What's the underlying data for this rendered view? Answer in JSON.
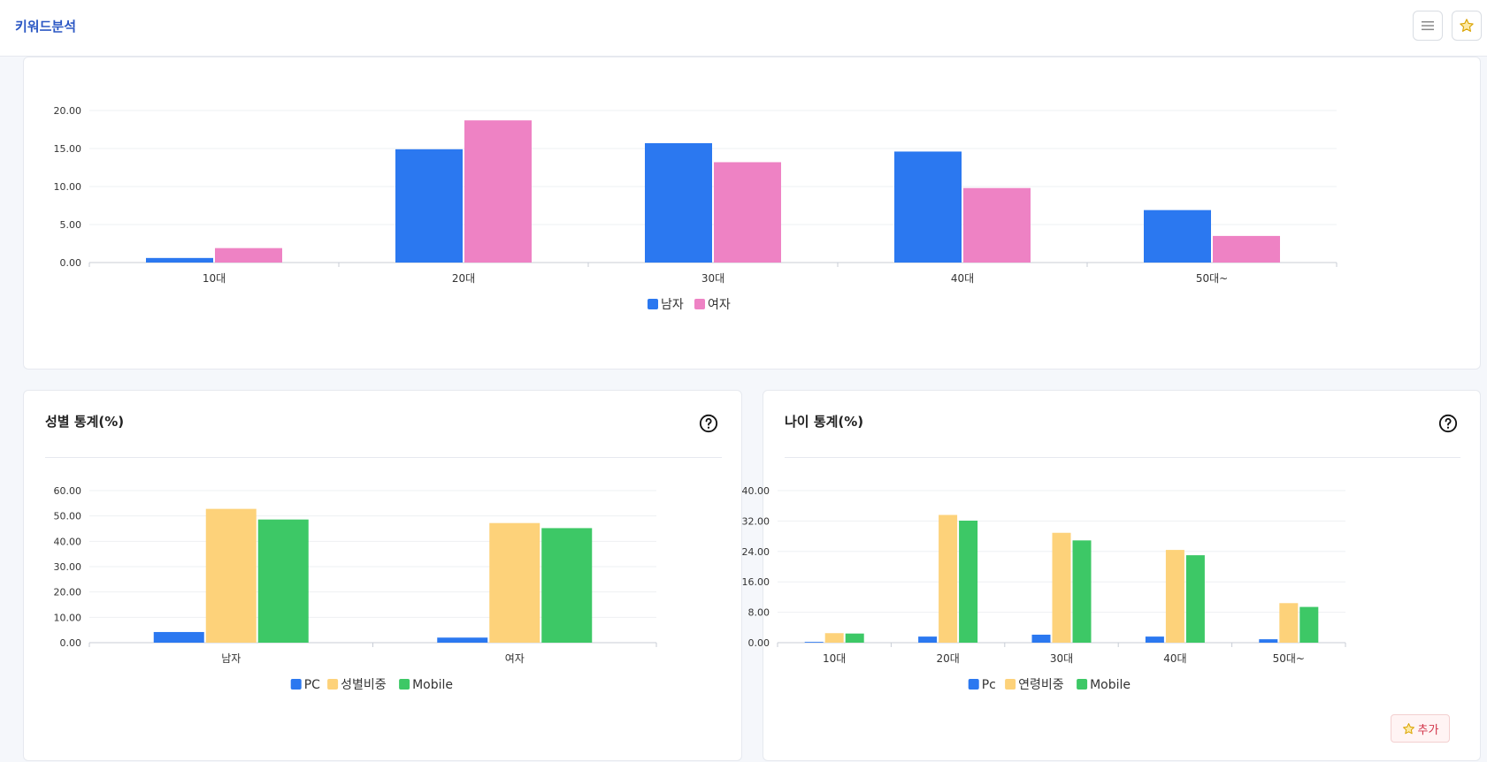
{
  "header": {
    "title": "키워드분석",
    "menu_icon": "hamburger-icon",
    "favorite_icon": "star-icon"
  },
  "colors": {
    "blue": "#2b78f0",
    "pink": "#ee82c4",
    "yellow": "#fdd27a",
    "green": "#3dc866"
  },
  "add_button": {
    "label": "추가",
    "icon": "star-icon"
  },
  "chart_data": [
    {
      "type": "bar",
      "title": "",
      "categories": [
        "10대",
        "20대",
        "30대",
        "40대",
        "50대~"
      ],
      "series": [
        {
          "name": "남자",
          "values": [
            0.6,
            14.9,
            15.7,
            14.6,
            6.9
          ]
        },
        {
          "name": "여자",
          "values": [
            1.9,
            18.7,
            13.2,
            9.8,
            3.5
          ]
        }
      ],
      "yticks": [
        "0.00",
        "5.00",
        "10.00",
        "15.00",
        "20.00"
      ],
      "ylim": [
        0,
        20
      ],
      "legend": "bottom"
    },
    {
      "type": "bar",
      "title": "성별 통계(%)",
      "categories": [
        "남자",
        "여자"
      ],
      "series": [
        {
          "name": "PC",
          "values": [
            4.2,
            2.0
          ]
        },
        {
          "name": "성별비중",
          "values": [
            52.8,
            47.2
          ]
        },
        {
          "name": "Mobile",
          "values": [
            48.6,
            45.2
          ]
        }
      ],
      "yticks": [
        "0.00",
        "10.00",
        "20.00",
        "30.00",
        "40.00",
        "50.00",
        "60.00"
      ],
      "ylim": [
        0,
        60
      ],
      "legend": "bottom"
    },
    {
      "type": "bar",
      "title": "나이 통계(%)",
      "categories": [
        "10대",
        "20대",
        "30대",
        "40대",
        "50대~"
      ],
      "series": [
        {
          "name": "Pc",
          "values": [
            0.2,
            1.6,
            2.1,
            1.6,
            0.9
          ]
        },
        {
          "name": "연령비중",
          "values": [
            2.5,
            33.6,
            28.9,
            24.4,
            10.4
          ]
        },
        {
          "name": "Mobile",
          "values": [
            2.4,
            32.1,
            26.9,
            23.0,
            9.4
          ]
        }
      ],
      "yticks": [
        "0.00",
        "8.00",
        "16.00",
        "24.00",
        "32.00",
        "40.00"
      ],
      "ylim": [
        0,
        40
      ],
      "legend": "bottom"
    }
  ]
}
